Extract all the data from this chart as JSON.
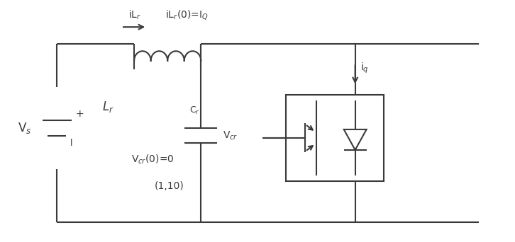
{
  "bg_color": "#ffffff",
  "line_color": "#3a3a3a",
  "line_width": 1.5,
  "fig_width": 7.26,
  "fig_height": 3.42,
  "xlim": [
    0,
    10
  ],
  "ylim": [
    0,
    5
  ],
  "labels": {
    "Vs": "V$_s$",
    "Lr_label": "L$_r$",
    "Cr_label": "C$_r$",
    "Vcr_label": "V$_{cr}$",
    "iLr_label": "iL$_r$",
    "iLr0_label": "iL$_r$(0)=I$_Q$",
    "Vcr0_label": "V$_{cr}$(0)=0",
    "eq_label": "(1,10)",
    "iq_label": "i$_q$",
    "plus": "+",
    "minus": "l"
  }
}
